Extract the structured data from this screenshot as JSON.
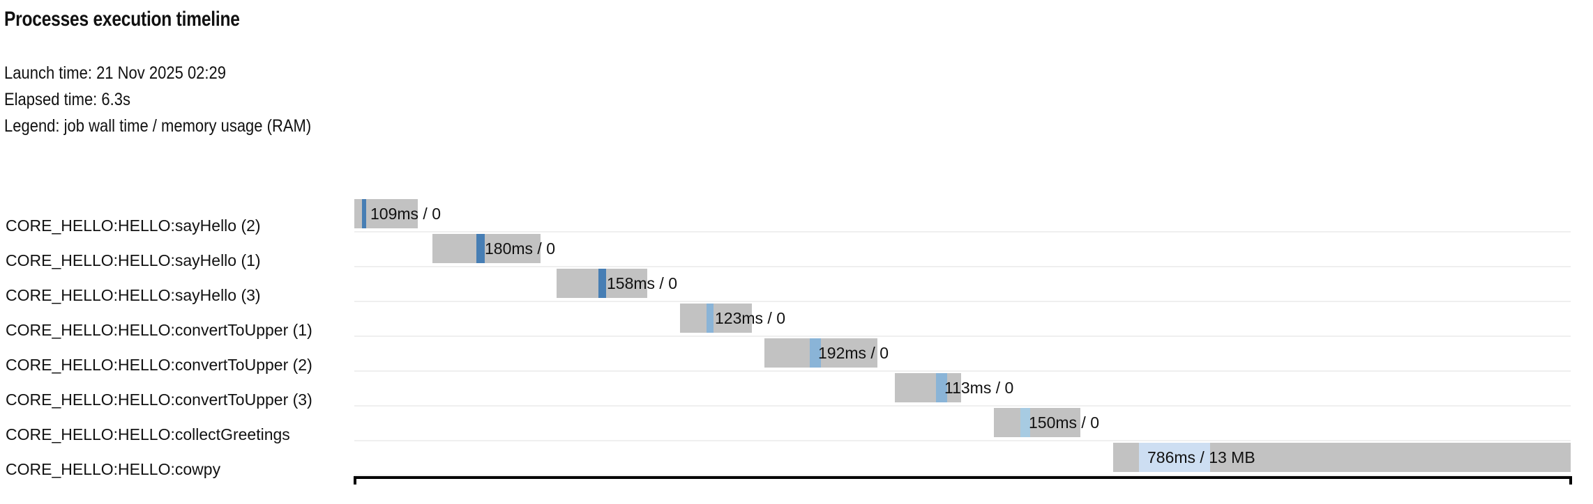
{
  "header": {
    "title": "Processes execution timeline",
    "launch_time": "Launch time: 21 Nov 2025 02:29",
    "elapsed_time": "Elapsed time: 6.3s",
    "legend": "Legend: job wall time / memory usage (RAM)"
  },
  "colors": {
    "bar_background": "#c2c2c2",
    "row_separator": "#efefef",
    "text": "#111111",
    "process_sayHello": "#477eb4",
    "process_convertToUpper": "#8ab4d7",
    "process_collectGreetings": "#a7cbe2",
    "process_cowpy": "#cddef2"
  },
  "chart_data": {
    "type": "gantt-timeline",
    "title": "Processes execution timeline",
    "launch_time": "21 Nov 2025 02:29",
    "elapsed_time_s": 6.3,
    "x_axis": {
      "unit": "seconds",
      "range": [
        0,
        6.3
      ],
      "visible_ticks": false
    },
    "legend": "job wall time / memory usage (RAM)",
    "rows": [
      {
        "label": "CORE_HELLO:HELLO:sayHello (2)",
        "value_label": "109ms / 0",
        "wall_time": "109ms",
        "memory": "0",
        "job_start_s": 0.0,
        "job_end_s": 0.33,
        "run_start_s": 0.04,
        "run_end_s": 0.06,
        "color": "#477eb4",
        "px": {
          "bar_start": 508,
          "bar_end": 599,
          "seg_start": 519,
          "seg_end": 525
        }
      },
      {
        "label": "CORE_HELLO:HELLO:sayHello (1)",
        "value_label": "180ms / 0",
        "wall_time": "180ms",
        "memory": "0",
        "job_start_s": 0.4,
        "job_end_s": 0.96,
        "run_start_s": 0.63,
        "run_end_s": 0.68,
        "color": "#477eb4",
        "px": {
          "bar_start": 620,
          "bar_end": 775,
          "seg_start": 683,
          "seg_end": 695
        }
      },
      {
        "label": "CORE_HELLO:HELLO:sayHello (3)",
        "value_label": "158ms / 0",
        "wall_time": "158ms",
        "memory": "0",
        "job_start_s": 1.04,
        "job_end_s": 1.51,
        "run_start_s": 1.26,
        "run_end_s": 1.3,
        "color": "#477eb4",
        "px": {
          "bar_start": 798,
          "bar_end": 928,
          "seg_start": 858,
          "seg_end": 869
        }
      },
      {
        "label": "CORE_HELLO:HELLO:convertToUpper (1)",
        "value_label": "123ms / 0",
        "wall_time": "123ms",
        "memory": "0",
        "job_start_s": 1.68,
        "job_end_s": 2.05,
        "run_start_s": 1.82,
        "run_end_s": 1.85,
        "color": "#8ab4d7",
        "px": {
          "bar_start": 975,
          "bar_end": 1078,
          "seg_start": 1013,
          "seg_end": 1023
        }
      },
      {
        "label": "CORE_HELLO:HELLO:convertToUpper (2)",
        "value_label": "192ms / 0",
        "wall_time": "192ms",
        "memory": "0",
        "job_start_s": 2.12,
        "job_end_s": 2.7,
        "run_start_s": 2.35,
        "run_end_s": 2.41,
        "color": "#8ab4d7",
        "px": {
          "bar_start": 1096,
          "bar_end": 1258,
          "seg_start": 1161,
          "seg_end": 1177
        }
      },
      {
        "label": "CORE_HELLO:HELLO:convertToUpper (3)",
        "value_label": "113ms / 0",
        "wall_time": "113ms",
        "memory": "0",
        "job_start_s": 2.79,
        "job_end_s": 3.13,
        "run_start_s": 3.0,
        "run_end_s": 3.06,
        "color": "#8ab4d7",
        "px": {
          "bar_start": 1283,
          "bar_end": 1378,
          "seg_start": 1342,
          "seg_end": 1358
        }
      },
      {
        "label": "CORE_HELLO:HELLO:collectGreetings",
        "value_label": "150ms / 0",
        "wall_time": "150ms",
        "memory": "0",
        "job_start_s": 3.3,
        "job_end_s": 3.75,
        "run_start_s": 3.44,
        "run_end_s": 3.49,
        "color": "#a7cbe2",
        "px": {
          "bar_start": 1425,
          "bar_end": 1549,
          "seg_start": 1463,
          "seg_end": 1477
        }
      },
      {
        "label": "CORE_HELLO:HELLO:cowpy",
        "value_label": "786ms / 13 MB",
        "wall_time": "786ms",
        "memory": "13 MB",
        "job_start_s": 3.92,
        "job_end_s": 6.28,
        "run_start_s": 4.05,
        "run_end_s": 4.42,
        "color": "#cddef2",
        "px": {
          "bar_start": 1596,
          "bar_end": 2252,
          "seg_start": 1633,
          "seg_end": 1735
        }
      }
    ]
  }
}
